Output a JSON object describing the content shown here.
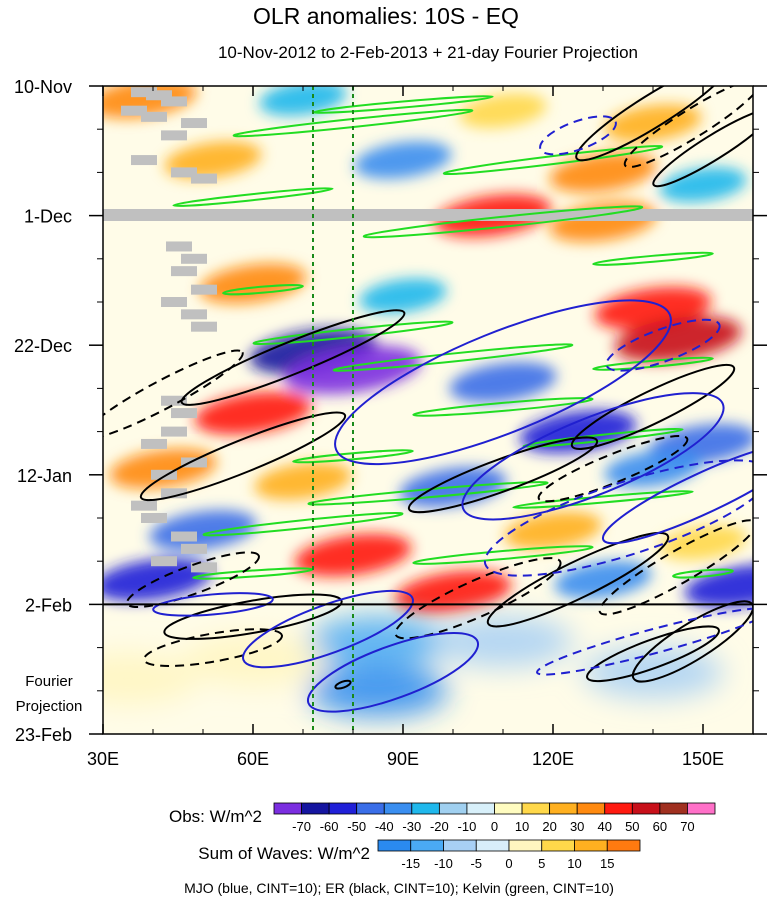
{
  "chart_data": {
    "type": "heatmap",
    "title": "OLR anomalies: 10S - EQ",
    "subtitle": "10-Nov-2012 to 2-Feb-2013 + 21-day Fourier Projection",
    "x_axis": {
      "range": [
        30,
        160
      ],
      "units": "degrees longitude",
      "ticks": [
        {
          "value": 30,
          "label": "30E"
        },
        {
          "value": 60,
          "label": "60E"
        },
        {
          "value": 90,
          "label": "90E"
        },
        {
          "value": 120,
          "label": "120E"
        },
        {
          "value": 150,
          "label": "150E"
        }
      ]
    },
    "y_axis": {
      "range_days": [
        0,
        105
      ],
      "units": "days since 10-Nov-2012",
      "ticks": [
        {
          "day": 0,
          "label": "10-Nov"
        },
        {
          "day": 21,
          "label": "1-Dec"
        },
        {
          "day": 42,
          "label": "22-Dec"
        },
        {
          "day": 63,
          "label": "12-Jan"
        },
        {
          "day": 84,
          "label": "2-Feb"
        },
        {
          "day": 105,
          "label": "23-Feb"
        }
      ],
      "projection_start_day": 84,
      "projection_label": "Fourier Projection"
    },
    "reference_lines_longitude": [
      72,
      80
    ],
    "obs_colorbar": {
      "label": "Obs: W/m^2",
      "levels": [
        "-70",
        "-60",
        "-50",
        "-40",
        "-30",
        "-20",
        "-10",
        "0",
        "10",
        "20",
        "30",
        "40",
        "50",
        "60",
        "70"
      ],
      "colors": [
        "#7b2ee0",
        "#1515a0",
        "#2020d8",
        "#3a6ee8",
        "#3a8ef0",
        "#20b8ec",
        "#a0d0f0",
        "#d8f0fa",
        "#fffcc0",
        "#ffd84a",
        "#ffb020",
        "#ff8a10",
        "#ff1a10",
        "#c8101a",
        "#a03020",
        "#ff70c8"
      ]
    },
    "waves_colorbar": {
      "label": "Sum of Waves: W/m^2",
      "levels": [
        "-15",
        "-10",
        "-5",
        "0",
        "5",
        "10",
        "15"
      ],
      "colors": [
        "#2a8af0",
        "#4aaaf5",
        "#a8d0f5",
        "#d8eefa",
        "#fff6c0",
        "#ffd84a",
        "#ffb020",
        "#ff7a10"
      ]
    },
    "legend": "MJO (blue, CINT=10); ER (black, CINT=10); Kelvin (green, CINT=10)",
    "series": [
      {
        "name": "MJO",
        "color": "#2020d0",
        "contour_interval": 10
      },
      {
        "name": "ER",
        "color": "#000000",
        "contour_interval": 10
      },
      {
        "name": "Kelvin",
        "color": "#22dd22",
        "contour_interval": 10
      }
    ],
    "anomaly_features": [
      {
        "lon": 38,
        "day": 2,
        "value": 40
      },
      {
        "lon": 70,
        "day": 2,
        "value": -20
      },
      {
        "lon": 110,
        "day": 4,
        "value": 20
      },
      {
        "lon": 140,
        "day": 6,
        "value": 30
      },
      {
        "lon": 52,
        "day": 12,
        "value": 30
      },
      {
        "lon": 90,
        "day": 12,
        "value": -30
      },
      {
        "lon": 130,
        "day": 14,
        "value": 40
      },
      {
        "lon": 150,
        "day": 16,
        "value": -20
      },
      {
        "lon": 108,
        "day": 21,
        "value": 50
      },
      {
        "lon": 130,
        "day": 22,
        "value": 40
      },
      {
        "lon": 60,
        "day": 32,
        "value": 40
      },
      {
        "lon": 90,
        "day": 34,
        "value": -20
      },
      {
        "lon": 140,
        "day": 36,
        "value": 50
      },
      {
        "lon": 72,
        "day": 43,
        "value": -60
      },
      {
        "lon": 80,
        "day": 46,
        "value": -70
      },
      {
        "lon": 145,
        "day": 41,
        "value": 60
      },
      {
        "lon": 110,
        "day": 48,
        "value": -40
      },
      {
        "lon": 60,
        "day": 53,
        "value": 50
      },
      {
        "lon": 125,
        "day": 56,
        "value": -50
      },
      {
        "lon": 150,
        "day": 58,
        "value": -40
      },
      {
        "lon": 42,
        "day": 62,
        "value": 40
      },
      {
        "lon": 70,
        "day": 64,
        "value": 30
      },
      {
        "lon": 100,
        "day": 65,
        "value": -40
      },
      {
        "lon": 140,
        "day": 62,
        "value": -30
      },
      {
        "lon": 50,
        "day": 72,
        "value": -40
      },
      {
        "lon": 80,
        "day": 76,
        "value": 50
      },
      {
        "lon": 120,
        "day": 72,
        "value": 30
      },
      {
        "lon": 150,
        "day": 74,
        "value": 20
      },
      {
        "lon": 40,
        "day": 80,
        "value": -50
      },
      {
        "lon": 100,
        "day": 82,
        "value": 50
      },
      {
        "lon": 130,
        "day": 80,
        "value": -30
      },
      {
        "lon": 158,
        "day": 81,
        "value": -50
      },
      {
        "lon": 85,
        "day": 90,
        "value": -10
      },
      {
        "lon": 85,
        "day": 98,
        "value": -15
      },
      {
        "lon": 60,
        "day": 93,
        "value": 5
      },
      {
        "lon": 35,
        "day": 96,
        "value": 5
      },
      {
        "lon": 140,
        "day": 95,
        "value": -5
      },
      {
        "lon": 110,
        "day": 90,
        "value": -5
      }
    ]
  }
}
